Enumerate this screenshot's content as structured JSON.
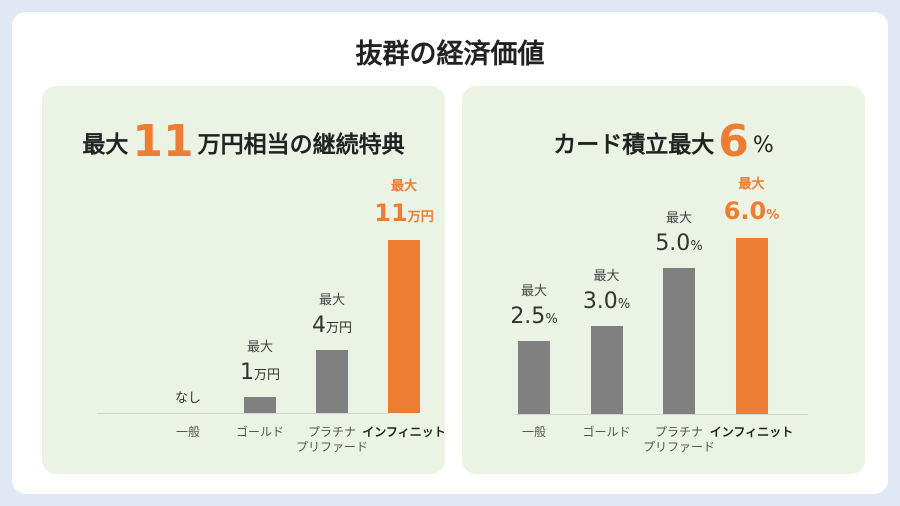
{
  "title": "抜群の経済価値",
  "colors": {
    "highlight": "#ec7d32",
    "bar": "#808080",
    "panel": "#ebf3e4",
    "background": "#dfe8f4"
  },
  "chart_data": [
    {
      "type": "bar",
      "title_parts": {
        "pre": "最大",
        "big": "11",
        "post": "万円相当の継続特典"
      },
      "categories": [
        "一般",
        "ゴールド",
        "プラチナ\nプリファード",
        "インフィニット"
      ],
      "values": [
        0,
        1,
        4,
        11
      ],
      "value_labels": [
        {
          "pre": "",
          "num": "なし",
          "unit": ""
        },
        {
          "pre": "最大",
          "num": "1",
          "unit": "万円"
        },
        {
          "pre": "最大",
          "num": "4",
          "unit": "万円"
        },
        {
          "pre": "最大",
          "num": "11",
          "unit": "万円"
        }
      ],
      "unit": "万円",
      "highlight_index": 3
    },
    {
      "type": "bar",
      "title_parts": {
        "pre": "カード積立最大",
        "big": "6",
        "post": "%"
      },
      "categories": [
        "一般",
        "ゴールド",
        "プラチナ\nプリファード",
        "インフィニット"
      ],
      "values": [
        2.5,
        3.0,
        5.0,
        6.0
      ],
      "value_labels": [
        {
          "pre": "最大",
          "num": "2.5",
          "unit": "%"
        },
        {
          "pre": "最大",
          "num": "3.0",
          "unit": "%"
        },
        {
          "pre": "最大",
          "num": "5.0",
          "unit": "%"
        },
        {
          "pre": "最大",
          "num": "6.0",
          "unit": "%"
        }
      ],
      "unit": "%",
      "highlight_index": 3
    }
  ]
}
